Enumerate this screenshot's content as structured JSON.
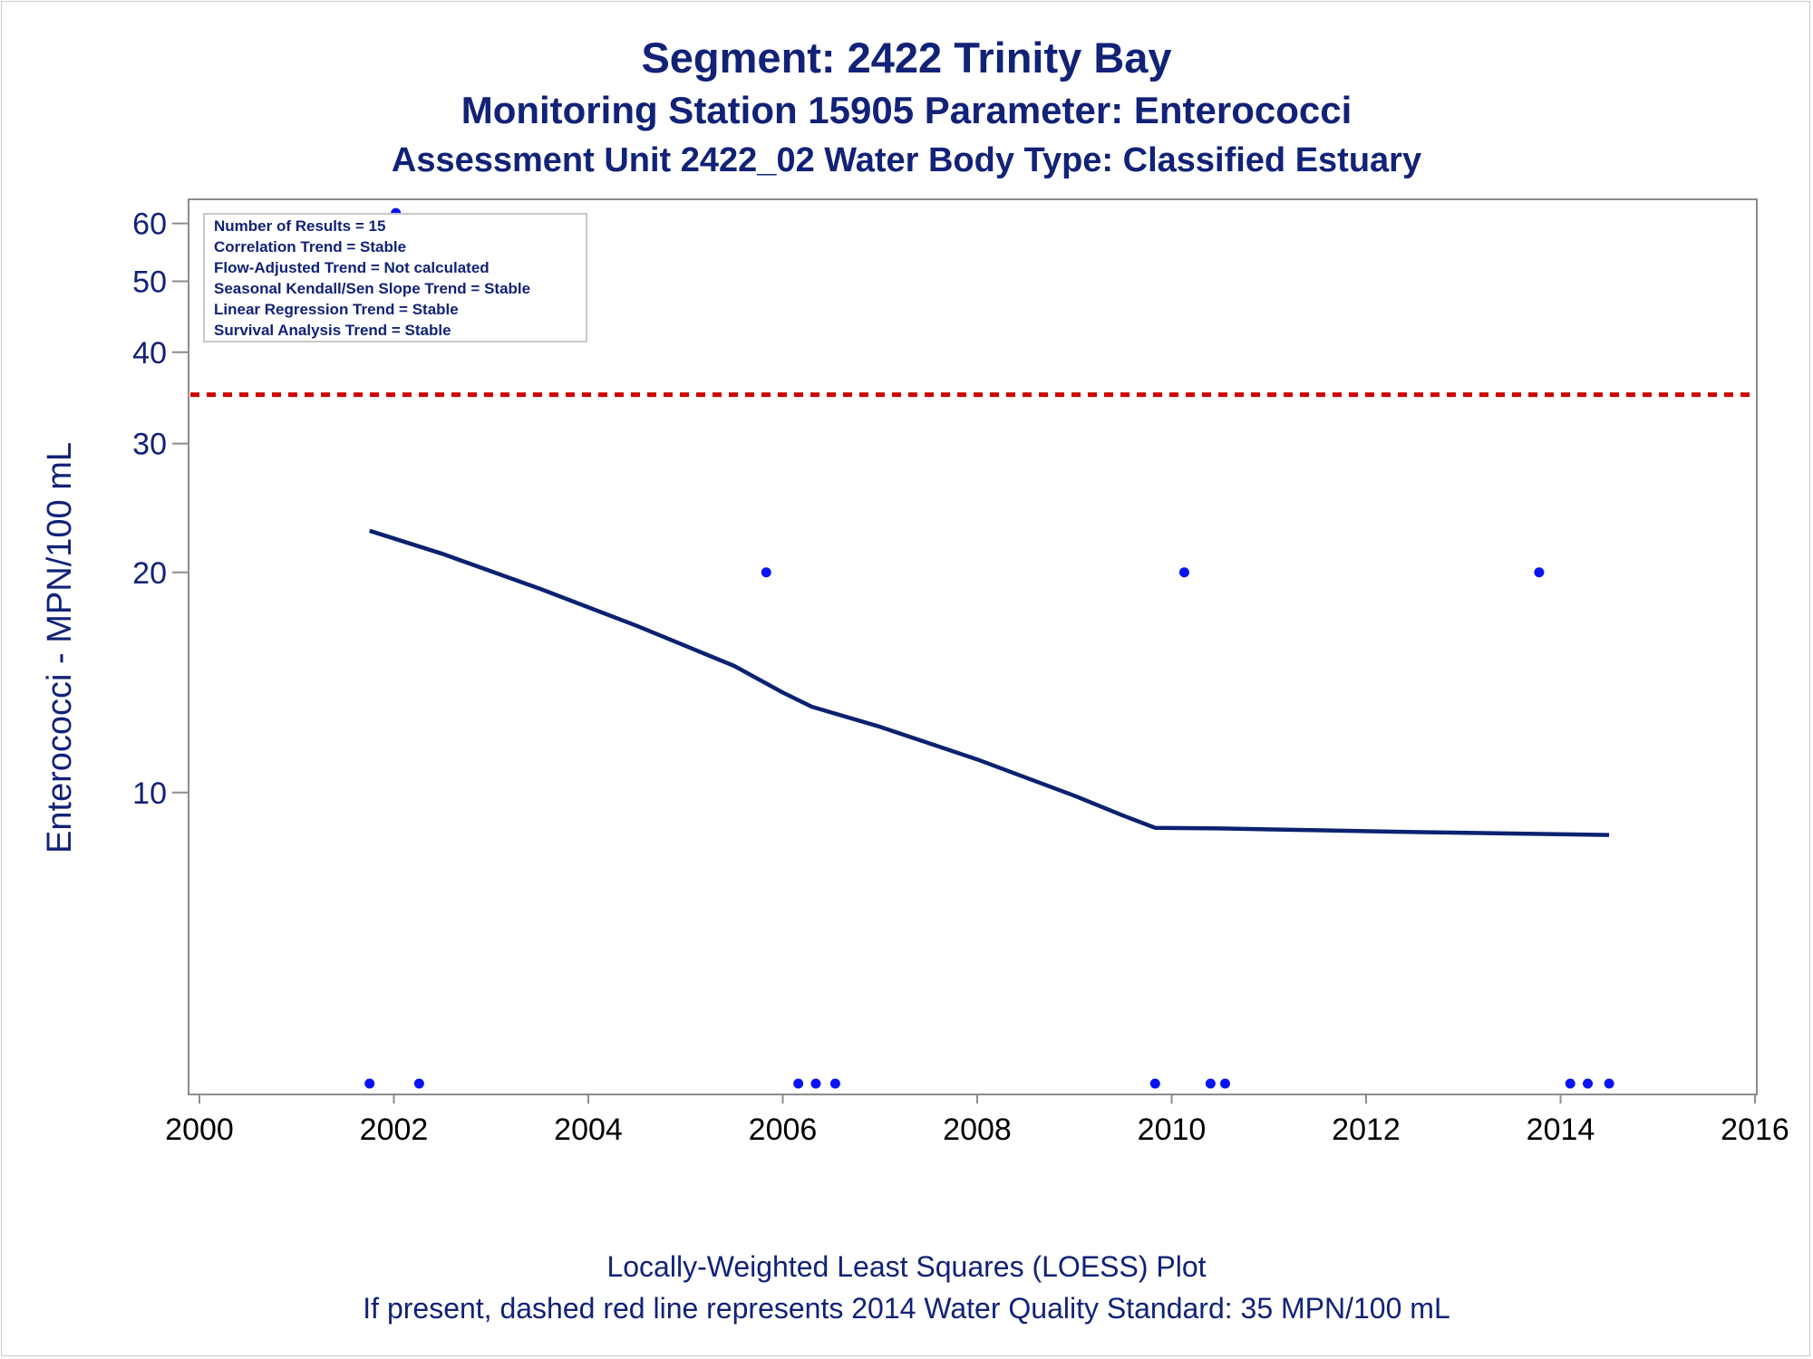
{
  "title_lines": [
    "Segment: 2422  Trinity Bay",
    "Monitoring Station 15905 Parameter: Enterococci",
    "Assessment Unit 2422_02   Water Body Type: Classified Estuary"
  ],
  "footer_lines": [
    "Locally-Weighted Least Squares (LOESS) Plot",
    "If present, dashed red line represents 2014 Water Quality Standard: 35 MPN/100 mL"
  ],
  "colors": {
    "text": "#112277",
    "loess_line": "#0a2270",
    "points": "#0a14f0",
    "standard_line": "#cc0000",
    "axis": "#8c8c8c"
  },
  "chart_data": {
    "type": "scatter",
    "ylabel": "Enterococci - MPN/100 mL",
    "xlabel": "",
    "xlim": [
      2000,
      2016
    ],
    "ylim": [
      4,
      64
    ],
    "yscale": "log",
    "x_ticks": [
      2000,
      2002,
      2004,
      2006,
      2008,
      2010,
      2012,
      2014,
      2016
    ],
    "y_ticks": [
      10,
      20,
      30,
      40,
      50,
      60
    ],
    "grid": false,
    "legend": "none",
    "info_box_position": "top-left",
    "info_box_lines": [
      "Number of Results = 15",
      "Correlation Trend = Stable",
      "Flow-Adjusted Trend = Not calculated",
      "Seasonal Kendall/Sen Slope Trend = Stable",
      "Linear Regression Trend = Stable",
      "Survival Analysis Trend = Stable"
    ],
    "standard_line": {
      "y": 35,
      "style": "dashed"
    },
    "points": [
      {
        "x": 2001.75,
        "y": 4
      },
      {
        "x": 2002.02,
        "y": 62
      },
      {
        "x": 2002.26,
        "y": 4
      },
      {
        "x": 2005.83,
        "y": 20
      },
      {
        "x": 2006.16,
        "y": 4
      },
      {
        "x": 2006.34,
        "y": 4
      },
      {
        "x": 2006.54,
        "y": 4
      },
      {
        "x": 2009.83,
        "y": 4
      },
      {
        "x": 2010.13,
        "y": 20
      },
      {
        "x": 2010.4,
        "y": 4
      },
      {
        "x": 2010.55,
        "y": 4
      },
      {
        "x": 2013.78,
        "y": 20
      },
      {
        "x": 2014.1,
        "y": 4
      },
      {
        "x": 2014.28,
        "y": 4
      },
      {
        "x": 2014.5,
        "y": 4
      }
    ],
    "loess": {
      "x": [
        2001.75,
        2002.5,
        2003.5,
        2004.5,
        2005.5,
        2006.0,
        2006.3,
        2007.0,
        2008.0,
        2009.0,
        2009.5,
        2009.83,
        2010.5,
        2011.5,
        2012.5,
        2013.5,
        2014.5
      ],
      "y": [
        22.8,
        21.2,
        19.0,
        16.9,
        14.9,
        13.7,
        13.1,
        12.3,
        11.1,
        9.9,
        9.3,
        8.95,
        8.93,
        8.88,
        8.83,
        8.79,
        8.75
      ]
    }
  }
}
